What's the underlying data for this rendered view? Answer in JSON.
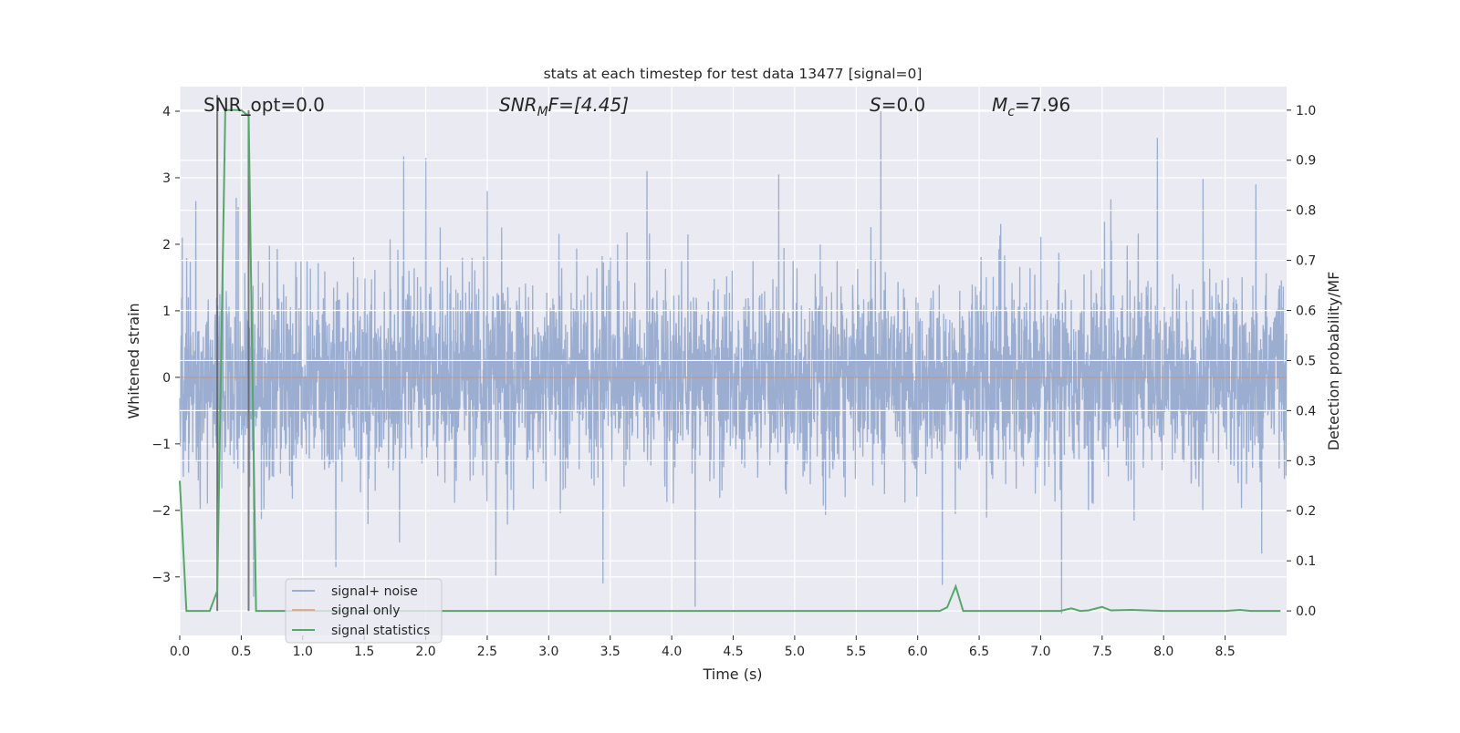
{
  "chart_data": {
    "type": "line",
    "title": "stats at each timestep for test data 13477 [signal=0]",
    "xlabel": "Time (s)",
    "ylabel": "Whitened strain",
    "ylabel_right": "Detection probability/MF",
    "xlim": [
      0,
      9.0
    ],
    "ylim": [
      -3.88,
      4.37
    ],
    "ylim_right": [
      -0.049,
      1.047
    ],
    "grid": true,
    "xticks": [
      "0.0",
      "0.5",
      "1.0",
      "1.5",
      "2.0",
      "2.5",
      "3.0",
      "3.5",
      "4.0",
      "4.5",
      "5.0",
      "5.5",
      "6.0",
      "6.5",
      "7.0",
      "7.5",
      "8.0",
      "8.5"
    ],
    "yticks": [
      "4",
      "3",
      "2",
      "1",
      "0",
      "−1",
      "−2",
      "−3"
    ],
    "yticks_right": [
      "1.0",
      "0.9",
      "0.8",
      "0.7",
      "0.6",
      "0.5",
      "0.4",
      "0.3",
      "0.2",
      "0.1",
      "0.0"
    ],
    "annotations": {
      "snr_opt": "SNR_opt=0.0",
      "snr_mf_main": "SNR",
      "snr_mf_sub": "M",
      "snr_mf_rest": "F=[4.45]",
      "s_main": "S",
      "s_rest": "=0.0",
      "mc_main": "M",
      "mc_sub": "c",
      "mc_rest": "=7.96"
    },
    "legend": {
      "placement": "lower-left",
      "entries": [
        "signal+ noise",
        "signal only",
        "signal statistics"
      ]
    },
    "series": [
      {
        "name": "signal+ noise",
        "axis": "left",
        "color": "#4C72B0",
        "noise": {
          "n_samples": 4000,
          "std": 0.72,
          "seed": 13477
        },
        "spikes": [
          [
            0.02,
            2.1
          ],
          [
            0.13,
            2.65
          ],
          [
            0.46,
            2.7
          ],
          [
            1.82,
            3.32
          ],
          [
            2.0,
            3.3
          ],
          [
            2.5,
            2.8
          ],
          [
            3.8,
            3.1
          ],
          [
            4.87,
            3.05
          ],
          [
            5.7,
            4.0
          ],
          [
            7.95,
            3.6
          ],
          [
            8.32,
            2.98
          ],
          [
            8.75,
            2.9
          ],
          [
            1.27,
            -2.85
          ],
          [
            2.57,
            -2.98
          ],
          [
            3.44,
            -3.1
          ],
          [
            4.19,
            -3.45
          ],
          [
            7.17,
            -3.55
          ],
          [
            6.2,
            -3.12
          ],
          [
            0.6,
            -3.3
          ]
        ]
      },
      {
        "name": "signal only",
        "axis": "left",
        "color": "#DD8452",
        "x": [
          0,
          9.0
        ],
        "y": [
          0,
          0
        ]
      },
      {
        "name": "signal statistics",
        "axis": "right",
        "color": "#55A868",
        "x": [
          0.0,
          0.054,
          0.244,
          0.305,
          0.37,
          0.5,
          0.56,
          0.62,
          6.18,
          6.24,
          6.31,
          6.37,
          7.16,
          7.25,
          7.32,
          7.39,
          7.5,
          7.57,
          7.74,
          7.99,
          8.5,
          8.62,
          8.71,
          8.95
        ],
        "y": [
          0.26,
          0.0,
          0.0,
          0.04,
          1.0,
          1.0,
          0.988,
          0.0,
          0.0,
          0.007,
          0.049,
          0.0,
          0.0,
          0.005,
          0.0,
          0.001,
          0.008,
          0.001,
          0.002,
          0.0,
          0.0,
          0.002,
          0.0,
          0.0
        ]
      }
    ],
    "vlines": [
      {
        "x": 0.305,
        "y_range": [
          0.0,
          1.03
        ]
      },
      {
        "x": 0.56,
        "y_range": [
          0.0,
          1.0
        ]
      }
    ],
    "colors": {
      "background": "#EAEAF2",
      "grid": "#FFFFFF",
      "vline": "#555555"
    }
  }
}
